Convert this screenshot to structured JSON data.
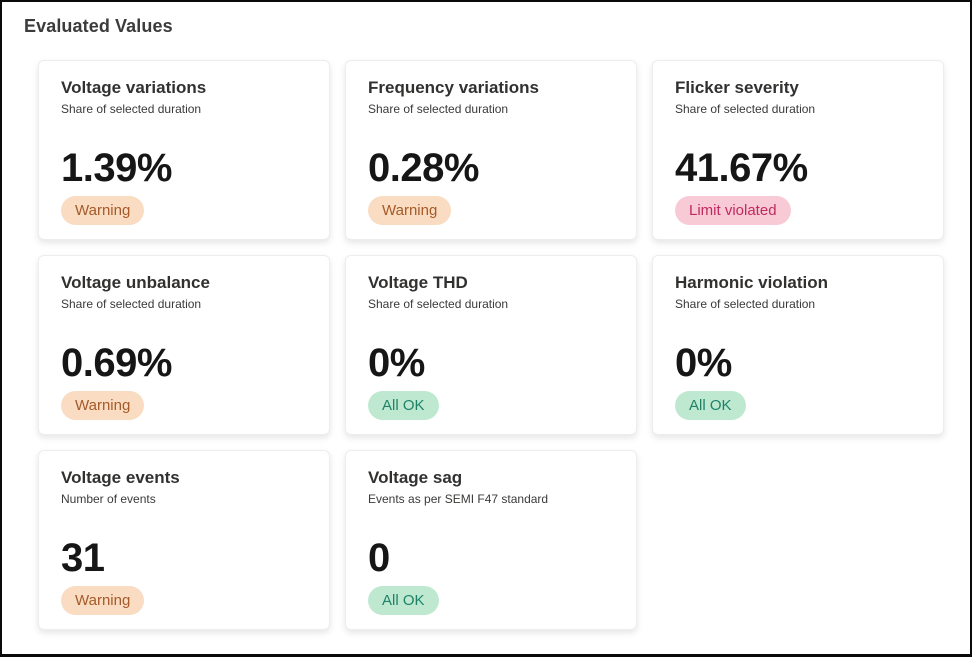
{
  "page": {
    "title": "Evaluated Values"
  },
  "colors": {
    "warning_bg": "#f9dcc2",
    "warning_text": "#a65a28",
    "violated_bg": "#f8cad6",
    "violated_text": "#c02960",
    "ok_bg": "#bee9d0",
    "ok_text": "#1e8168",
    "page_border": "#0a0a0a"
  },
  "cards": [
    {
      "title": "Voltage variations",
      "subtitle": "Share of selected duration",
      "value": "1.39%",
      "status": "Warning",
      "status_type": "warning"
    },
    {
      "title": "Frequency variations",
      "subtitle": "Share of selected duration",
      "value": "0.28%",
      "status": "Warning",
      "status_type": "warning"
    },
    {
      "title": "Flicker severity",
      "subtitle": "Share of selected duration",
      "value": "41.67%",
      "status": "Limit violated",
      "status_type": "violated"
    },
    {
      "title": "Voltage unbalance",
      "subtitle": "Share of selected duration",
      "value": "0.69%",
      "status": "Warning",
      "status_type": "warning"
    },
    {
      "title": "Voltage THD",
      "subtitle": "Share of selected duration",
      "value": "0%",
      "status": "All OK",
      "status_type": "ok"
    },
    {
      "title": "Harmonic violation",
      "subtitle": "Share of selected duration",
      "value": "0%",
      "status": "All OK",
      "status_type": "ok"
    },
    {
      "title": "Voltage events",
      "subtitle": "Number of events",
      "value": "31",
      "status": "Warning",
      "status_type": "warning"
    },
    {
      "title": "Voltage sag",
      "subtitle": "Events as per SEMI F47 standard",
      "value": "0",
      "status": "All OK",
      "status_type": "ok"
    }
  ]
}
